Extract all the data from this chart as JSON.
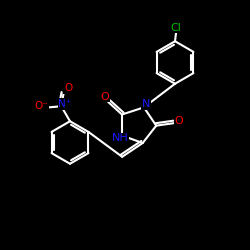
{
  "background": "#000000",
  "bond_color": "#ffffff",
  "bond_width": 1.5,
  "atom_colors": {
    "N": "#1a1aff",
    "O": "#ff0000",
    "Cl": "#00bb00"
  },
  "figsize": [
    2.5,
    2.5
  ],
  "dpi": 100,
  "xlim": [
    0,
    10
  ],
  "ylim": [
    0,
    10
  ]
}
